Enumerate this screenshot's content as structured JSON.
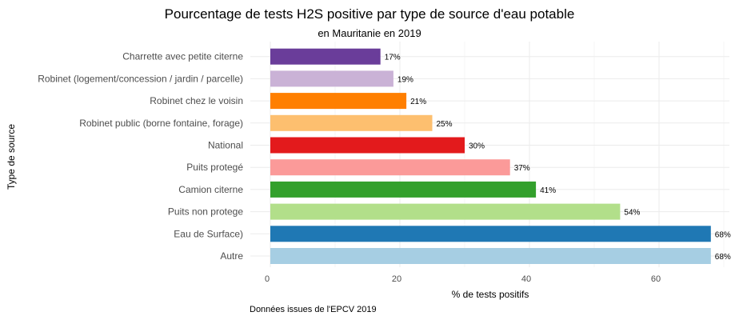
{
  "chart_data": {
    "type": "bar",
    "orientation": "horizontal",
    "title": "Pourcentage de tests H2S positive par type de source d'eau potable",
    "subtitle": "en Mauritanie en 2019",
    "xlabel": "% de tests positifs",
    "ylabel": "Type de source",
    "caption": "Données issues de l'EPCV 2019",
    "xlim": [
      0,
      70
    ],
    "x_ticks": [
      0,
      20,
      40,
      60
    ],
    "x_tick_labels": [
      "0",
      "20",
      "40",
      "60"
    ],
    "grid": true,
    "legend": "none",
    "categories": [
      "Autre",
      "Eau de Surface)",
      "Puits non protege",
      "Camion citerne",
      "Puits protegé",
      "National",
      "Robinet public  (borne fontaine, forage)",
      "Robinet chez le voisin",
      "Robinet (logement/concession / jardin / parcelle)",
      "Charrette avec petite citerne"
    ],
    "values": [
      68,
      68,
      54,
      41,
      37,
      30,
      25,
      21,
      19,
      17
    ],
    "data_labels": [
      "68%",
      "68%",
      "54%",
      "41%",
      "37%",
      "30%",
      "25%",
      "21%",
      "19%",
      "17%"
    ],
    "colors": [
      "#a6cee3",
      "#1f78b4",
      "#b2df8a",
      "#33a02c",
      "#fb9a99",
      "#e31a1c",
      "#fdbf6f",
      "#ff7f00",
      "#cab2d6",
      "#6a3d9a"
    ]
  }
}
